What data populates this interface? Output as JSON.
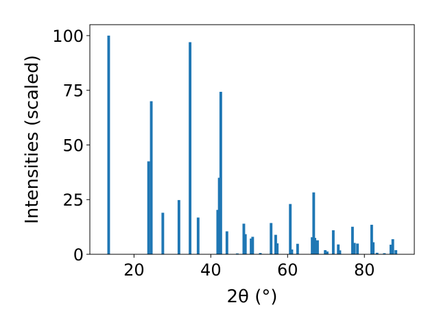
{
  "chart_data": {
    "type": "bar",
    "xlabel": "2θ (°)",
    "ylabel": "Intensities (scaled)",
    "xlim": [
      8.5,
      93
    ],
    "ylim": [
      0,
      105
    ],
    "xticks": [
      20,
      40,
      60,
      80
    ],
    "yticks": [
      0,
      25,
      50,
      75,
      100
    ],
    "grid": false,
    "bar_color": "#1f77b4",
    "bar_width": 0.7,
    "x": [
      13.4,
      23.8,
      24.5,
      27.5,
      31.7,
      34.6,
      36.7,
      41.8,
      42.2,
      42.6,
      44.2,
      46.9,
      48.6,
      49.0,
      50.5,
      50.9,
      52.9,
      55.7,
      56.9,
      57.3,
      60.7,
      61.1,
      62.6,
      66.4,
      66.8,
      67.1,
      67.8,
      69.8,
      70.3,
      71.9,
      73.2,
      73.6,
      76.9,
      77.4,
      78.2,
      81.9,
      82.3,
      83.3,
      85.2,
      86.9,
      87.4,
      88.2
    ],
    "y": [
      100,
      42.5,
      70,
      19,
      24.8,
      97,
      16.8,
      20.3,
      35,
      74.3,
      10.5,
      0.4,
      14,
      9.2,
      7.2,
      8,
      0.6,
      14.3,
      8.9,
      5,
      23,
      2.2,
      4.8,
      7.8,
      28.3,
      7.5,
      6.4,
      1.9,
      1.3,
      11,
      4.5,
      1.8,
      12.6,
      5.2,
      4.9,
      13.5,
      5.5,
      0.7,
      0.5,
      4.4,
      6.9,
      1.9
    ]
  }
}
